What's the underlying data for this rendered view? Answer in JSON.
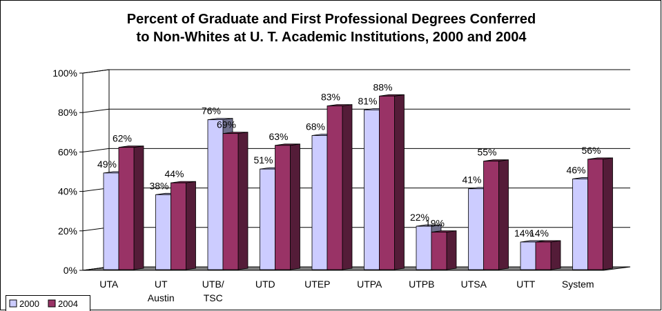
{
  "chart_data": {
    "type": "bar3d",
    "title": "Percent of Graduate and First Professional Degrees Conferred",
    "subtitle": "to Non-Whites at U. T. Academic Institutions, 2000 and 2004",
    "categories": [
      "UTA",
      "UT Austin",
      "UTB/ TSC",
      "UTD",
      "UTEP",
      "UTPA",
      "UTPB",
      "UTSA",
      "UTT",
      "System"
    ],
    "series": [
      {
        "name": "2000",
        "color": "#ccccff",
        "values": [
          49,
          38,
          76,
          51,
          68,
          81,
          22,
          41,
          14,
          46
        ],
        "value_labels": [
          "49%",
          "38%",
          "76%",
          "51%",
          "68%",
          "81%",
          "22%",
          "41%",
          "14%",
          "46%"
        ]
      },
      {
        "name": "2004",
        "color": "#993366",
        "values": [
          62,
          44,
          69,
          63,
          83,
          88,
          19,
          55,
          14,
          56
        ],
        "value_labels": [
          "62%",
          "44%",
          "69%",
          "63%",
          "83%",
          "88%",
          "19%",
          "55%",
          "14%",
          "56%"
        ]
      }
    ],
    "ylim": [
      0,
      100
    ],
    "yticks": [
      {
        "value": 0,
        "label": "0%"
      },
      {
        "value": 20,
        "label": "20%"
      },
      {
        "value": 40,
        "label": "40%"
      },
      {
        "value": 60,
        "label": "60%"
      },
      {
        "value": 80,
        "label": "80%"
      },
      {
        "value": 100,
        "label": "100%"
      }
    ],
    "grid": true,
    "legend": "bottom-left"
  }
}
